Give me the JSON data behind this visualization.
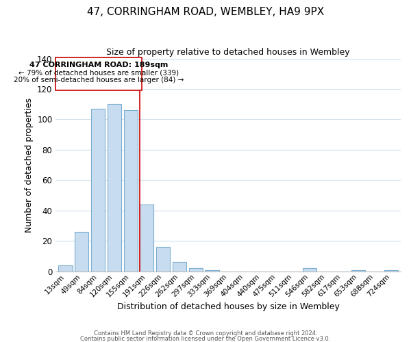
{
  "title": "47, CORRINGHAM ROAD, WEMBLEY, HA9 9PX",
  "subtitle": "Size of property relative to detached houses in Wembley",
  "xlabel": "Distribution of detached houses by size in Wembley",
  "ylabel": "Number of detached properties",
  "bar_labels": [
    "13sqm",
    "49sqm",
    "84sqm",
    "120sqm",
    "155sqm",
    "191sqm",
    "226sqm",
    "262sqm",
    "297sqm",
    "333sqm",
    "369sqm",
    "404sqm",
    "440sqm",
    "475sqm",
    "511sqm",
    "546sqm",
    "582sqm",
    "617sqm",
    "653sqm",
    "688sqm",
    "724sqm"
  ],
  "bar_values": [
    4,
    26,
    107,
    110,
    106,
    44,
    16,
    6,
    2,
    1,
    0,
    0,
    0,
    0,
    0,
    2,
    0,
    0,
    1,
    0,
    1
  ],
  "bar_color": "#c8dcf0",
  "bar_edge_color": "#7aaed0",
  "marker_index": 5,
  "marker_color": "#cc0000",
  "ylim": [
    0,
    140
  ],
  "yticks": [
    0,
    20,
    40,
    60,
    80,
    100,
    120,
    140
  ],
  "annotation_line1": "47 CORRINGHAM ROAD: 189sqm",
  "annotation_line2": "← 79% of detached houses are smaller (339)",
  "annotation_line3": "20% of semi-detached houses are larger (84) →",
  "footer1": "Contains HM Land Registry data © Crown copyright and database right 2024.",
  "footer2": "Contains public sector information licensed under the Open Government Licence v3.0.",
  "background_color": "#ffffff",
  "grid_color": "#ccdded"
}
